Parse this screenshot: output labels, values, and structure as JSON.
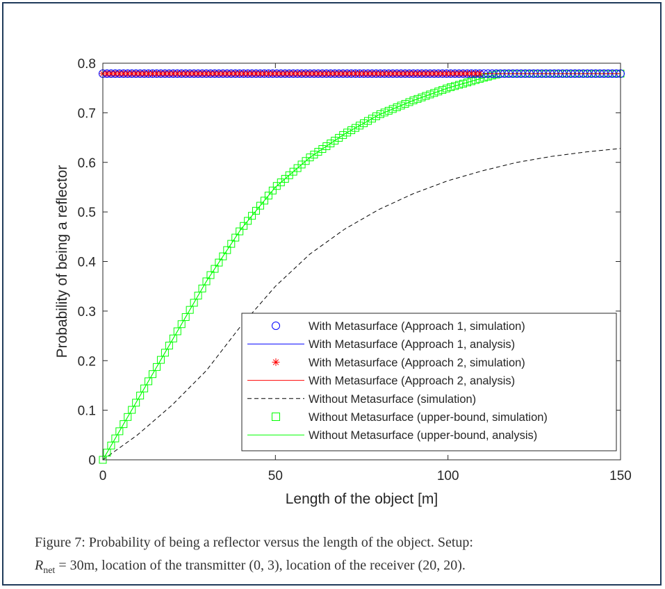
{
  "chart_data": {
    "type": "line",
    "xlabel": "Length of the object [m]",
    "ylabel": "Probability of being a reflector",
    "xlim": [
      0,
      150
    ],
    "ylim": [
      0,
      0.8
    ],
    "xticks": [
      0,
      50,
      100,
      150
    ],
    "yticks": [
      0,
      0.1,
      0.2,
      0.3,
      0.4,
      0.5,
      0.6,
      0.7,
      0.8
    ],
    "xtick_labels": [
      "0",
      "50",
      "100",
      "150"
    ],
    "ytick_labels": [
      "0",
      "0.1",
      "0.2",
      "0.3",
      "0.4",
      "0.5",
      "0.6",
      "0.7",
      "0.8"
    ],
    "grid": false,
    "legend_position": "bottom-right",
    "series": [
      {
        "name": "With Metasurface (Approach 1, simulation)",
        "style": "marker",
        "marker": "circle",
        "color": "#0000ff",
        "x": [
          0,
          150
        ],
        "y": [
          0.779,
          0.779
        ]
      },
      {
        "name": "With Metasurface (Approach 1, analysis)",
        "style": "line",
        "color": "#0000ff",
        "x": [
          0,
          150
        ],
        "y": [
          0.779,
          0.779
        ]
      },
      {
        "name": "With Metasurface (Approach 2, simulation)",
        "style": "marker",
        "marker": "asterisk",
        "color": "#ff0000",
        "x": [
          0,
          150
        ],
        "y": [
          0.779,
          0.779
        ]
      },
      {
        "name": "With Metasurface (Approach 2, analysis)",
        "style": "line",
        "color": "#ff0000",
        "x": [
          0,
          150
        ],
        "y": [
          0.779,
          0.779
        ]
      },
      {
        "name": "Without Metasurface (simulation)",
        "style": "dashed",
        "color": "#000000",
        "x": [
          0,
          10,
          20,
          30,
          40,
          50,
          60,
          70,
          80,
          90,
          100,
          110,
          120,
          130,
          140,
          150
        ],
        "y": [
          0,
          0.05,
          0.11,
          0.18,
          0.27,
          0.35,
          0.415,
          0.465,
          0.505,
          0.537,
          0.563,
          0.583,
          0.6,
          0.612,
          0.621,
          0.628
        ]
      },
      {
        "name": "Without Metasurface (upper-bound, simulation)",
        "style": "marker",
        "marker": "square",
        "color": "#00ff00",
        "x": [
          0,
          10,
          20,
          30,
          40,
          50,
          60,
          70,
          80,
          90,
          100,
          110,
          115,
          120,
          130,
          140,
          150
        ],
        "y": [
          0,
          0.12,
          0.24,
          0.36,
          0.465,
          0.55,
          0.61,
          0.657,
          0.696,
          0.725,
          0.75,
          0.77,
          0.779,
          0.779,
          0.779,
          0.779,
          0.779
        ]
      },
      {
        "name": "Without Metasurface (upper-bound, analysis)",
        "style": "line",
        "color": "#00ff00",
        "x": [
          0,
          10,
          20,
          30,
          40,
          50,
          60,
          70,
          80,
          90,
          100,
          110,
          115,
          120,
          130,
          140,
          150
        ],
        "y": [
          0,
          0.12,
          0.24,
          0.36,
          0.465,
          0.55,
          0.61,
          0.657,
          0.696,
          0.725,
          0.75,
          0.77,
          0.779,
          0.779,
          0.779,
          0.779,
          0.779
        ]
      }
    ]
  },
  "caption": {
    "line1": "Figure 7: Probability of being a reflector versus the length of the object. Setup:",
    "line2_symbol": "R",
    "line2_sub": "net",
    "line2_rest": " = 30m, location of the transmitter (0, 3), location of the receiver (20, 20)."
  }
}
